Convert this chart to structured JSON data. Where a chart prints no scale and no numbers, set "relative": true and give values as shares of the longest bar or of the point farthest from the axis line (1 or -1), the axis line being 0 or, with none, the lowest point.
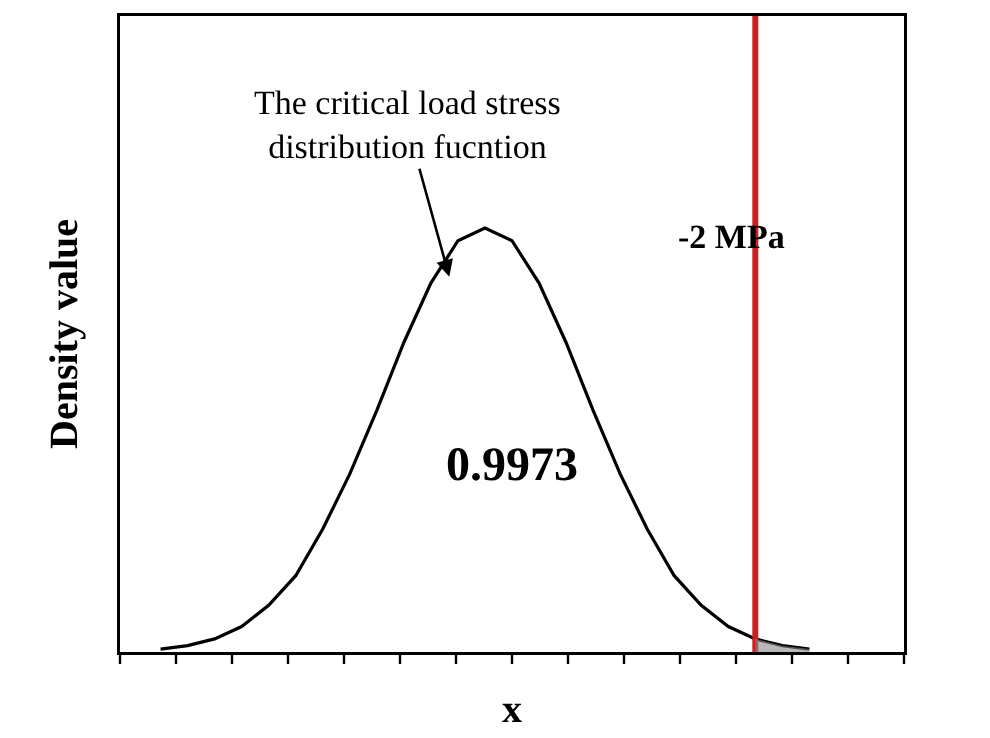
{
  "chart_data": {
    "type": "line",
    "relative": true,
    "xlabel": "x",
    "ylabel": "Density value",
    "categories": [
      null,
      null,
      null,
      null,
      null,
      null,
      null,
      null,
      null,
      null,
      null,
      null,
      null,
      null,
      null,
      null,
      null,
      null,
      null,
      null,
      null,
      null,
      null,
      null,
      null
    ],
    "series": [
      {
        "color": "#000000",
        "values": [
          0.007,
          0.015,
          0.031,
          0.06,
          0.11,
          0.18,
          0.29,
          0.42,
          0.57,
          0.73,
          0.87,
          0.97,
          1,
          0.97,
          0.87,
          0.73,
          0.57,
          0.42,
          0.29,
          0.18,
          0.11,
          0.06,
          0.031,
          0.015,
          0.007
        ]
      }
    ],
    "annotations": [
      "The critical load stress\ndistribution fucntion",
      "-2 MPa",
      "0.9973"
    ],
    "marker": "none",
    "line_style": "solid"
  }
}
